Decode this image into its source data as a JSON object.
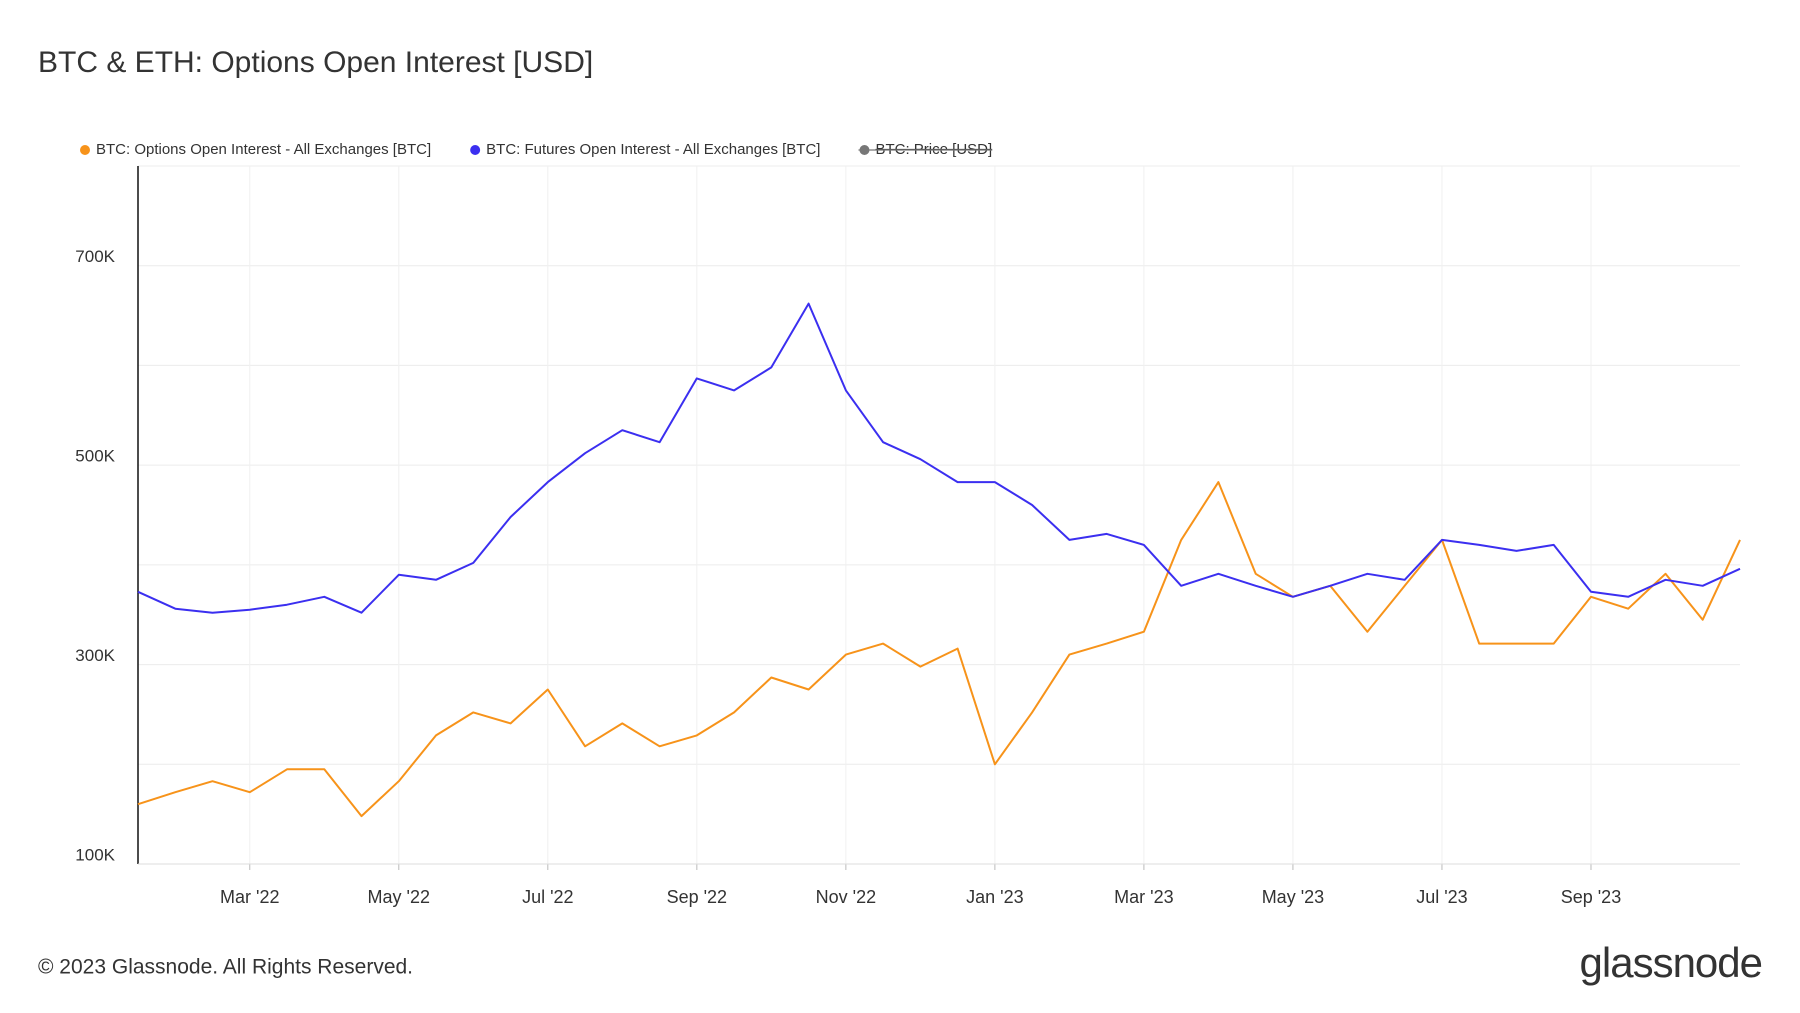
{
  "chart_data": {
    "type": "line",
    "title": "BTC & ETH: Options Open Interest [USD]",
    "categories": [
      null,
      null,
      null,
      "Mar '22",
      null,
      null,
      null,
      "May '22",
      null,
      null,
      null,
      "Jul '22",
      null,
      null,
      null,
      "Sep '22",
      null,
      null,
      null,
      "Nov '22",
      null,
      null,
      null,
      "Jan '23",
      null,
      null,
      null,
      "Mar '23",
      null,
      null,
      null,
      "May '23",
      null,
      null,
      null,
      "Jul '23",
      null,
      null,
      null,
      "Sep '23",
      null,
      null,
      null,
      null
    ],
    "series": [
      {
        "name": "BTC: Options Open Interest - All Exchanges [BTC]",
        "color": "#f7931a",
        "values": [
          160000,
          172000,
          183000,
          172000,
          195000,
          195000,
          148000,
          183000,
          229000,
          252000,
          241000,
          275000,
          218000,
          241000,
          218000,
          229000,
          252000,
          287000,
          275000,
          310000,
          321000,
          298000,
          316000,
          200000,
          252000,
          310000,
          321000,
          333000,
          425000,
          483000,
          391000,
          368000,
          379000,
          333000,
          379000,
          425000,
          321000,
          321000,
          321000,
          368000,
          356000,
          391000,
          345000,
          425000
        ]
      },
      {
        "name": "BTC: Futures Open Interest - All Exchanges [BTC]",
        "color": "#3b2ff0",
        "values": [
          373000,
          356000,
          352000,
          355000,
          360000,
          368000,
          352000,
          390000,
          385000,
          402000,
          448000,
          483000,
          512000,
          535000,
          523000,
          587000,
          575000,
          598000,
          662000,
          575000,
          523000,
          506000,
          483000,
          483000,
          460000,
          425000,
          431000,
          420000,
          379000,
          391000,
          379000,
          368000,
          379000,
          391000,
          385000,
          425000,
          420000,
          414000,
          420000,
          373000,
          368000,
          385000,
          379000,
          396000
        ]
      }
    ],
    "legend_hidden": [
      {
        "name": "BTC: Price [USD]",
        "color": "#777777"
      }
    ],
    "ylim": [
      100000,
      800000
    ],
    "yticks": [
      {
        "value": 100000,
        "label": "100K"
      },
      {
        "value": 300000,
        "label": "300K"
      },
      {
        "value": 500000,
        "label": "500K"
      },
      {
        "value": 700000,
        "label": "700K"
      }
    ],
    "yminor": [
      200000,
      400000,
      600000,
      800000
    ],
    "grid": true
  },
  "footer": {
    "copyright": "© 2023 Glassnode. All Rights Reserved.",
    "logo": "glassnode"
  }
}
